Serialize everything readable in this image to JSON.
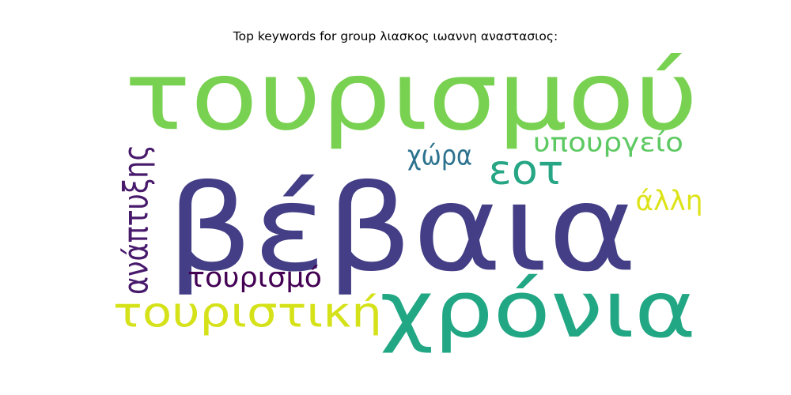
{
  "chart_data": {
    "type": "wordcloud",
    "title": "Top keywords for group λιασκος ιωαννη αναστασιος:",
    "words": [
      {
        "text": "τουρισμού",
        "rank": 2,
        "color": "#79d151"
      },
      {
        "text": "βέβαια",
        "rank": 1,
        "color": "#433e85"
      },
      {
        "text": "χρόνια",
        "rank": 3,
        "color": "#22a784"
      },
      {
        "text": "τουριστική",
        "rank": 4,
        "color": "#d5e21a"
      },
      {
        "text": "ανάπτυξης",
        "rank": 5,
        "color": "#481a6c"
      },
      {
        "text": "εοτ",
        "rank": 6,
        "color": "#26a685"
      },
      {
        "text": "τουρισμό",
        "rank": 7,
        "color": "#440154"
      },
      {
        "text": "χώρα",
        "rank": 8,
        "color": "#2c728e"
      },
      {
        "text": "υπουργείο",
        "rank": 9,
        "color": "#5ec962"
      },
      {
        "text": "άλλη",
        "rank": 10,
        "color": "#dde318"
      }
    ]
  }
}
